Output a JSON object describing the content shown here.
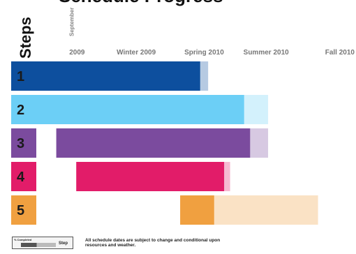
{
  "chart_data": {
    "type": "bar",
    "subtype": "gantt",
    "title": "Schedule Progress",
    "ylabel": "Steps",
    "x_range": [
      0,
      16
    ],
    "x_unit": "months from 2009-07-01 (estimated, tick labels only)",
    "x_ticks": [
      {
        "value": 2,
        "label": "September",
        "sublabel": "2009"
      },
      {
        "value": 5,
        "label": "Winter 2009"
      },
      {
        "value": 8.4,
        "label": "Spring 2010"
      },
      {
        "value": 11.5,
        "label": "Summer 2010"
      },
      {
        "value": 15.2,
        "label": "Fall 2010"
      }
    ],
    "tasks": [
      {
        "label": "1",
        "start": 0.0,
        "completed_end": 8.2,
        "end": 8.6,
        "color": "#0d4f9e"
      },
      {
        "label": "2",
        "start": 0.0,
        "completed_end": 10.4,
        "end": 11.6,
        "color": "#6ccff6"
      },
      {
        "label": "3",
        "start": 1.0,
        "completed_end": 10.7,
        "end": 11.6,
        "color": "#7b4b9e"
      },
      {
        "label": "4",
        "start": 2.0,
        "completed_end": 9.4,
        "end": 9.7,
        "color": "#e21c69"
      },
      {
        "label": "5",
        "start": 7.2,
        "completed_end": 8.9,
        "end": 14.1,
        "color": "#f0a040"
      }
    ]
  },
  "legend": {
    "label": "% Completed",
    "step_label": "Step",
    "note": "All schedule dates are subject to change and conditional upon resources and weather."
  }
}
